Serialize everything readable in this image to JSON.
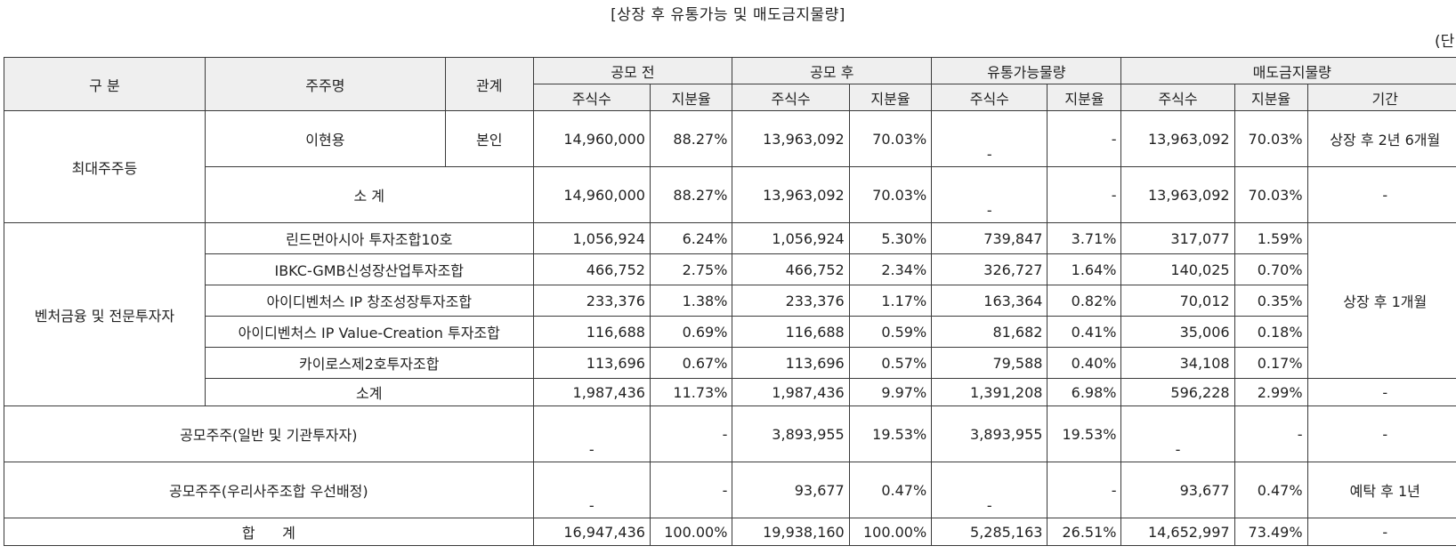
{
  "title": "[상장 후 유통가능 및 매도금지물량]",
  "unit": "(단",
  "headers": {
    "category": "구 분",
    "holder": "주주명",
    "relation": "관계",
    "before_ipo": "공모 전",
    "after_ipo": "공모 후",
    "tradable": "유통가능물량",
    "lockup": "매도금지물량",
    "shares": "주식수",
    "ratio": "지분율",
    "period": "기간"
  },
  "groups": {
    "largest": "최대주주등",
    "venture": "벤처금융 및 전문투자자"
  },
  "rows": {
    "lee": {
      "holder": "이현용",
      "relation": "본인",
      "before_shares": "14,960,000",
      "before_ratio": "88.27%",
      "after_shares": "13,963,092",
      "after_ratio": "70.03%",
      "trade_shares": "-",
      "trade_ratio": "-",
      "lock_shares": "13,963,092",
      "lock_ratio": "70.03%",
      "period": "상장 후 2년 6개월"
    },
    "largest_subtotal": {
      "label": "소 계",
      "before_shares": "14,960,000",
      "before_ratio": "88.27%",
      "after_shares": "13,963,092",
      "after_ratio": "70.03%",
      "trade_shares": "-",
      "trade_ratio": "-",
      "lock_shares": "13,963,092",
      "lock_ratio": "70.03%",
      "period": "-"
    },
    "v1": {
      "holder": "린드먼아시아 투자조합10호",
      "before_shares": "1,056,924",
      "before_ratio": "6.24%",
      "after_shares": "1,056,924",
      "after_ratio": "5.30%",
      "trade_shares": "739,847",
      "trade_ratio": "3.71%",
      "lock_shares": "317,077",
      "lock_ratio": "1.59%"
    },
    "v2": {
      "holder": "IBKC-GMB신성장산업투자조합",
      "before_shares": "466,752",
      "before_ratio": "2.75%",
      "after_shares": "466,752",
      "after_ratio": "2.34%",
      "trade_shares": "326,727",
      "trade_ratio": "1.64%",
      "lock_shares": "140,025",
      "lock_ratio": "0.70%"
    },
    "v3": {
      "holder": "아이디벤처스 IP 창조성장투자조합",
      "before_shares": "233,376",
      "before_ratio": "1.38%",
      "after_shares": "233,376",
      "after_ratio": "1.17%",
      "trade_shares": "163,364",
      "trade_ratio": "0.82%",
      "lock_shares": "70,012",
      "lock_ratio": "0.35%"
    },
    "v4": {
      "holder": "아이디벤처스 IP Value-Creation 투자조합",
      "before_shares": "116,688",
      "before_ratio": "0.69%",
      "after_shares": "116,688",
      "after_ratio": "0.59%",
      "trade_shares": "81,682",
      "trade_ratio": "0.41%",
      "lock_shares": "35,006",
      "lock_ratio": "0.18%"
    },
    "v5": {
      "holder": "카이로스제2호투자조합",
      "before_shares": "113,696",
      "before_ratio": "0.67%",
      "after_shares": "113,696",
      "after_ratio": "0.57%",
      "trade_shares": "79,588",
      "trade_ratio": "0.40%",
      "lock_shares": "34,108",
      "lock_ratio": "0.17%"
    },
    "venture_period": "상장 후 1개월",
    "venture_subtotal": {
      "label": "소계",
      "before_shares": "1,987,436",
      "before_ratio": "11.73%",
      "after_shares": "1,987,436",
      "after_ratio": "9.97%",
      "trade_shares": "1,391,208",
      "trade_ratio": "6.98%",
      "lock_shares": "596,228",
      "lock_ratio": "2.99%",
      "period": "-"
    },
    "public_general": {
      "label": "공모주주(일반 및 기관투자자)",
      "before_shares": "-",
      "before_ratio": "-",
      "after_shares": "3,893,955",
      "after_ratio": "19.53%",
      "trade_shares": "3,893,955",
      "trade_ratio": "19.53%",
      "lock_shares": "-",
      "lock_ratio": "-",
      "period": "-"
    },
    "public_esop": {
      "label": "공모주주(우리사주조합 우선배정)",
      "before_shares": "-",
      "before_ratio": "-",
      "after_shares": "93,677",
      "after_ratio": "0.47%",
      "trade_shares": "-",
      "trade_ratio": "-",
      "lock_shares": "93,677",
      "lock_ratio": "0.47%",
      "period": "예탁 후 1년"
    },
    "total": {
      "label": "합      계",
      "before_shares": "16,947,436",
      "before_ratio": "100.00%",
      "after_shares": "19,938,160",
      "after_ratio": "100.00%",
      "trade_shares": "5,285,163",
      "trade_ratio": "26.51%",
      "lock_shares": "14,652,997",
      "lock_ratio": "73.49%",
      "period": "-"
    }
  }
}
